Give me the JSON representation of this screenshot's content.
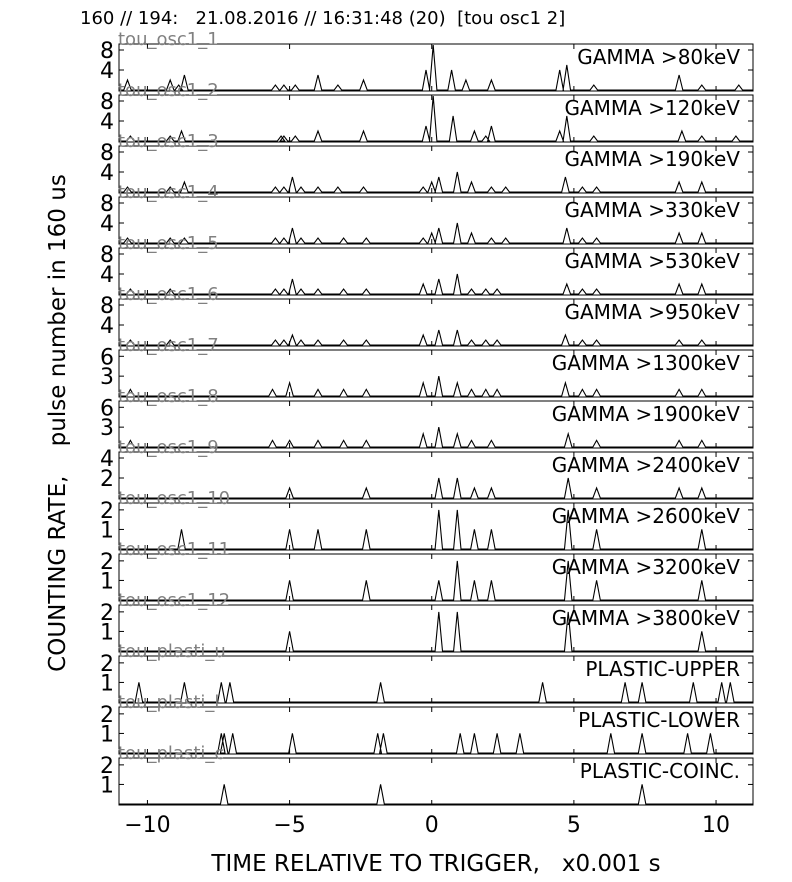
{
  "figure": {
    "title": "160 // 194:   21.08.2016 // 16:31:48 (20)  [tou osc1 2]",
    "ylabel": "COUNTING RATE,    pulse number in 160 us",
    "xlabel": "TIME RELATIVE TO TRIGGER,   x0.001 s"
  },
  "chart_data": {
    "type": "line",
    "xlim": [
      -11,
      11.3
    ],
    "xticks": [
      -10,
      -5,
      0,
      5,
      10
    ],
    "xtick_labels": [
      "−10",
      "−5",
      "0",
      "5",
      "10"
    ],
    "grid": false,
    "panels": [
      {
        "id": "tou_osc1_1",
        "tag": "tou_osc1_1",
        "label": "GAMMA >80keV",
        "ylim": [
          0,
          9
        ],
        "yticks": [
          4,
          8
        ],
        "peaks": [
          [
            -10.7,
            2
          ],
          [
            -9.2,
            2
          ],
          [
            -8.9,
            1
          ],
          [
            -8.7,
            3
          ],
          [
            -5.5,
            1
          ],
          [
            -5.2,
            1
          ],
          [
            -4.8,
            1
          ],
          [
            -4,
            3
          ],
          [
            -3.3,
            1
          ],
          [
            -2.4,
            2
          ],
          [
            -0.2,
            4
          ],
          [
            0.05,
            9
          ],
          [
            0.7,
            4
          ],
          [
            1.2,
            2
          ],
          [
            2.1,
            2
          ],
          [
            4.5,
            4
          ],
          [
            4.75,
            5
          ],
          [
            5.7,
            1
          ],
          [
            8.7,
            3
          ],
          [
            9.5,
            1
          ],
          [
            10.8,
            1
          ]
        ]
      },
      {
        "id": "tou_osc1_2",
        "tag": "tou_osc1_2",
        "label": "GAMMA >120keV",
        "ylim": [
          0,
          9
        ],
        "yticks": [
          4,
          8
        ],
        "peaks": [
          [
            -10.6,
            1
          ],
          [
            -9.2,
            1
          ],
          [
            -8.8,
            2
          ],
          [
            -5.3,
            1
          ],
          [
            -5.2,
            1
          ],
          [
            -4.8,
            1
          ],
          [
            -4,
            2
          ],
          [
            -2.4,
            2
          ],
          [
            -0.2,
            3
          ],
          [
            0.05,
            9
          ],
          [
            0.75,
            5
          ],
          [
            1.5,
            2
          ],
          [
            1.9,
            1
          ],
          [
            2.1,
            3
          ],
          [
            4.5,
            2
          ],
          [
            4.75,
            5
          ],
          [
            5.7,
            1
          ],
          [
            8.8,
            2
          ],
          [
            9.5,
            1
          ],
          [
            10.7,
            1
          ]
        ]
      },
      {
        "id": "tou_osc1_3",
        "tag": "tou_osc1_3",
        "label": "GAMMA >190keV",
        "ylim": [
          0,
          9
        ],
        "yticks": [
          4,
          8
        ],
        "peaks": [
          [
            -10.7,
            1
          ],
          [
            -9.2,
            1
          ],
          [
            -8.7,
            2
          ],
          [
            -5.5,
            1
          ],
          [
            -5.2,
            1
          ],
          [
            -4.9,
            3
          ],
          [
            -4.6,
            1
          ],
          [
            -4,
            1
          ],
          [
            -3.3,
            1
          ],
          [
            -2.4,
            1
          ],
          [
            -0.3,
            1
          ],
          [
            0,
            2
          ],
          [
            0.25,
            3
          ],
          [
            0.9,
            4
          ],
          [
            1.4,
            2
          ],
          [
            2.1,
            1
          ],
          [
            2.6,
            1
          ],
          [
            4.7,
            3
          ],
          [
            5.3,
            1
          ],
          [
            5.8,
            1
          ],
          [
            8.7,
            2
          ],
          [
            9.5,
            2
          ]
        ]
      },
      {
        "id": "tou_osc1_4",
        "tag": "tou_osc1_4",
        "label": "GAMMA >330keV",
        "ylim": [
          0,
          9
        ],
        "yticks": [
          4,
          8
        ],
        "peaks": [
          [
            -10.7,
            1
          ],
          [
            -9.2,
            1
          ],
          [
            -8.7,
            1
          ],
          [
            -5.5,
            1
          ],
          [
            -5.2,
            1
          ],
          [
            -4.9,
            3
          ],
          [
            -4.6,
            1
          ],
          [
            -4,
            1
          ],
          [
            -3.1,
            1
          ],
          [
            -2.3,
            1
          ],
          [
            -0.3,
            1
          ],
          [
            0,
            2
          ],
          [
            0.25,
            3
          ],
          [
            0.9,
            4
          ],
          [
            1.4,
            2
          ],
          [
            2.1,
            1
          ],
          [
            2.6,
            1
          ],
          [
            4.75,
            3
          ],
          [
            5.3,
            1
          ],
          [
            5.8,
            1
          ],
          [
            8.7,
            2
          ],
          [
            9.5,
            2
          ]
        ]
      },
      {
        "id": "tou_osc1_5",
        "tag": "tou_osc1_5",
        "label": "GAMMA >530keV",
        "ylim": [
          0,
          9
        ],
        "yticks": [
          4,
          8
        ],
        "peaks": [
          [
            -10.6,
            1
          ],
          [
            -9.2,
            1
          ],
          [
            -5.5,
            1
          ],
          [
            -5.2,
            1
          ],
          [
            -4.9,
            3
          ],
          [
            -4.6,
            1
          ],
          [
            -4,
            1
          ],
          [
            -3.1,
            1
          ],
          [
            -2.3,
            1
          ],
          [
            -0.3,
            2
          ],
          [
            0.25,
            3
          ],
          [
            0.9,
            4
          ],
          [
            1.4,
            1
          ],
          [
            1.9,
            1
          ],
          [
            2.3,
            1
          ],
          [
            4.75,
            2
          ],
          [
            5.3,
            1
          ],
          [
            5.8,
            1
          ],
          [
            8.7,
            2
          ],
          [
            9.5,
            2
          ]
        ]
      },
      {
        "id": "tou_osc1_6",
        "tag": "tou_osc1_6",
        "label": "GAMMA >950keV",
        "ylim": [
          0,
          9
        ],
        "yticks": [
          4,
          8
        ],
        "peaks": [
          [
            -10.6,
            1
          ],
          [
            -9.2,
            1
          ],
          [
            -5.5,
            1
          ],
          [
            -5.2,
            1
          ],
          [
            -4.9,
            2
          ],
          [
            -4.6,
            1
          ],
          [
            -4,
            1
          ],
          [
            -3.1,
            1
          ],
          [
            -2.3,
            1
          ],
          [
            -0.3,
            2
          ],
          [
            0.25,
            3
          ],
          [
            0.9,
            3
          ],
          [
            1.4,
            1
          ],
          [
            1.9,
            1
          ],
          [
            2.3,
            1
          ],
          [
            4.7,
            2
          ],
          [
            5.3,
            1
          ],
          [
            5.8,
            1
          ],
          [
            8.7,
            1
          ],
          [
            9.5,
            1
          ]
        ]
      },
      {
        "id": "tou_osc1_7",
        "tag": "tou_osc1_7",
        "label": "GAMMA >1300keV",
        "ylim": [
          0,
          6.8
        ],
        "yticks": [
          3,
          6
        ],
        "peaks": [
          [
            -10.6,
            1
          ],
          [
            -5.6,
            1
          ],
          [
            -5,
            2
          ],
          [
            -4,
            1
          ],
          [
            -3.1,
            1
          ],
          [
            -2.3,
            1
          ],
          [
            -0.3,
            2
          ],
          [
            0.25,
            3
          ],
          [
            0.9,
            2
          ],
          [
            1.4,
            1
          ],
          [
            1.9,
            1
          ],
          [
            2.3,
            1
          ],
          [
            4.7,
            2
          ],
          [
            5.3,
            1
          ],
          [
            5.8,
            1
          ],
          [
            8.7,
            1
          ],
          [
            9.5,
            1
          ]
        ]
      },
      {
        "id": "tou_osc1_8",
        "tag": "tou_osc1_8",
        "label": "GAMMA >1900keV",
        "ylim": [
          0,
          6.8
        ],
        "yticks": [
          3,
          6
        ],
        "peaks": [
          [
            -10.6,
            1
          ],
          [
            -5.6,
            1
          ],
          [
            -5,
            1
          ],
          [
            -4,
            1
          ],
          [
            -3.1,
            1
          ],
          [
            -2.3,
            1
          ],
          [
            -0.3,
            2
          ],
          [
            0.25,
            3
          ],
          [
            0.9,
            2
          ],
          [
            1.4,
            1
          ],
          [
            2.1,
            1
          ],
          [
            4.8,
            2
          ],
          [
            5.8,
            1
          ],
          [
            8.7,
            1
          ],
          [
            9.5,
            1
          ]
        ]
      },
      {
        "id": "tou_osc1_9",
        "tag": "tou_osc1_9",
        "label": "GAMMA >2400keV",
        "ylim": [
          0,
          4.5
        ],
        "yticks": [
          2,
          4
        ],
        "peaks": [
          [
            -5,
            1
          ],
          [
            -2.3,
            1
          ],
          [
            0.25,
            2
          ],
          [
            0.9,
            2
          ],
          [
            1.5,
            1
          ],
          [
            2.1,
            1
          ],
          [
            4.8,
            2
          ],
          [
            5.8,
            1
          ],
          [
            8.7,
            1
          ],
          [
            9.5,
            1
          ]
        ]
      },
      {
        "id": "tou_osc1_10",
        "tag": "tou_osc1_10",
        "label": "GAMMA >2600keV",
        "ylim": [
          0,
          2.3
        ],
        "yticks": [
          1,
          2
        ],
        "peaks": [
          [
            -8.8,
            1
          ],
          [
            -5,
            1
          ],
          [
            -4,
            1
          ],
          [
            -2.3,
            1
          ],
          [
            0.25,
            2
          ],
          [
            0.9,
            2
          ],
          [
            1.5,
            1
          ],
          [
            2.1,
            1
          ],
          [
            4.8,
            2
          ],
          [
            5.8,
            1
          ],
          [
            9.5,
            1
          ]
        ]
      },
      {
        "id": "tou_osc1_11",
        "tag": "tou_osc1_11",
        "label": "GAMMA >3200keV",
        "ylim": [
          0,
          2.3
        ],
        "yticks": [
          1,
          2
        ],
        "peaks": [
          [
            -5,
            1
          ],
          [
            -2.3,
            1
          ],
          [
            0.25,
            1
          ],
          [
            0.9,
            2
          ],
          [
            1.5,
            1
          ],
          [
            2.1,
            1
          ],
          [
            4.8,
            2
          ],
          [
            5.8,
            1
          ],
          [
            9.5,
            1
          ]
        ]
      },
      {
        "id": "tou_osc1_12",
        "tag": "tou_osc1_12",
        "label": "GAMMA >3800keV",
        "ylim": [
          0,
          2.3
        ],
        "yticks": [
          1,
          2
        ],
        "peaks": [
          [
            -5,
            1
          ],
          [
            0.25,
            2
          ],
          [
            0.9,
            2
          ],
          [
            4.8,
            2
          ],
          [
            9.5,
            1
          ]
        ]
      },
      {
        "id": "tou_plasti_u",
        "tag": "tou_plasti_u",
        "label": "PLASTIC-UPPER",
        "ylim": [
          0,
          2.3
        ],
        "yticks": [
          1,
          2
        ],
        "peaks": [
          [
            -10.3,
            1
          ],
          [
            -8.7,
            1
          ],
          [
            -7.4,
            1
          ],
          [
            -7.1,
            1
          ],
          [
            -1.8,
            1
          ],
          [
            3.9,
            1
          ],
          [
            6.8,
            1
          ],
          [
            7.4,
            1
          ],
          [
            9.2,
            1
          ],
          [
            10.2,
            1
          ],
          [
            10.5,
            1
          ]
        ]
      },
      {
        "id": "tou_plasti_l",
        "tag": "tou_plasti_l",
        "label": "PLASTIC-LOWER",
        "ylim": [
          0,
          2.3
        ],
        "yticks": [
          1,
          2
        ],
        "peaks": [
          [
            -7.4,
            1
          ],
          [
            -7.3,
            1
          ],
          [
            -7,
            1
          ],
          [
            -4.9,
            1
          ],
          [
            -1.9,
            1
          ],
          [
            -1.7,
            1
          ],
          [
            1.0,
            1
          ],
          [
            1.5,
            1
          ],
          [
            2.3,
            1
          ],
          [
            3.1,
            1
          ],
          [
            6.3,
            1
          ],
          [
            7.4,
            1
          ],
          [
            9.0,
            1
          ],
          [
            9.8,
            1
          ]
        ]
      },
      {
        "id": "tou_plasti_c",
        "tag": "tou_plasti_c",
        "label": "PLASTIC-COINC.",
        "ylim": [
          0,
          2.3
        ],
        "yticks": [
          1,
          2
        ],
        "peaks": [
          [
            -7.3,
            1
          ],
          [
            -1.8,
            1
          ],
          [
            7.4,
            1
          ]
        ]
      }
    ]
  },
  "colors": {
    "line": "#000000",
    "tag": "#808080",
    "axis": "#000000"
  }
}
